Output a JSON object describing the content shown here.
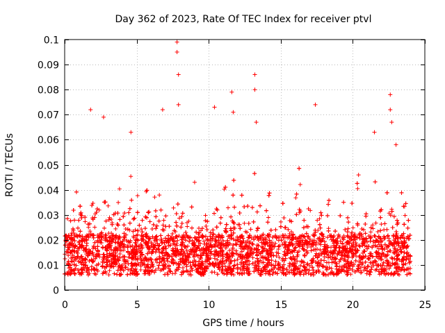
{
  "chart_data": {
    "type": "scatter",
    "title": "Day 362 of 2023, Rate Of TEC Index for receiver ptvl",
    "xlabel": "GPS time / hours",
    "ylabel": "ROTI / TECUs",
    "xlim": [
      0,
      25
    ],
    "ylim": [
      0,
      0.1
    ],
    "xticks": [
      0,
      5,
      10,
      15,
      20,
      25
    ],
    "xtick_labels": [
      "0",
      "5",
      "10",
      "15",
      "20",
      "25"
    ],
    "yticks": [
      0,
      0.01,
      0.02,
      0.03,
      0.04,
      0.05,
      0.06,
      0.07,
      0.08,
      0.09,
      0.1
    ],
    "ytick_labels": [
      "0",
      "0.01",
      "0.02",
      "0.03",
      "0.04",
      "0.05",
      "0.06",
      "0.07",
      "0.08",
      "0.09",
      "0.1"
    ],
    "grid": true,
    "marker": "+",
    "color": "#ff0000",
    "x_data_range": [
      0,
      24
    ],
    "typical_range": [
      0.003,
      0.035
    ],
    "notable_points": [
      {
        "x": 1.8,
        "y": 0.072
      },
      {
        "x": 2.7,
        "y": 0.069
      },
      {
        "x": 4.6,
        "y": 0.063
      },
      {
        "x": 6.8,
        "y": 0.072
      },
      {
        "x": 7.8,
        "y": 0.099
      },
      {
        "x": 7.8,
        "y": 0.095
      },
      {
        "x": 7.9,
        "y": 0.086
      },
      {
        "x": 7.9,
        "y": 0.074
      },
      {
        "x": 10.4,
        "y": 0.073
      },
      {
        "x": 11.6,
        "y": 0.079
      },
      {
        "x": 11.7,
        "y": 0.071
      },
      {
        "x": 13.2,
        "y": 0.086
      },
      {
        "x": 13.2,
        "y": 0.08
      },
      {
        "x": 13.3,
        "y": 0.067
      },
      {
        "x": 17.4,
        "y": 0.074
      },
      {
        "x": 21.5,
        "y": 0.063
      },
      {
        "x": 22.6,
        "y": 0.078
      },
      {
        "x": 22.6,
        "y": 0.072
      },
      {
        "x": 22.7,
        "y": 0.067
      },
      {
        "x": 23.0,
        "y": 0.058
      }
    ]
  }
}
